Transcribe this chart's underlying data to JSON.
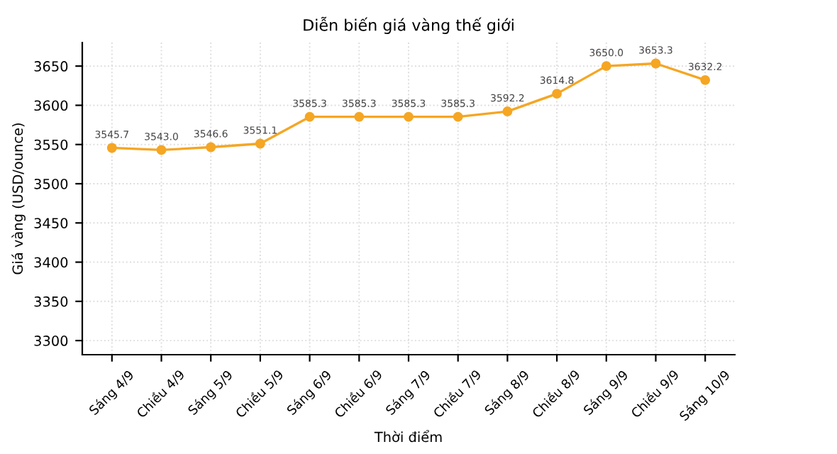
{
  "chart_data": {
    "type": "line",
    "title": "Diễn biến giá vàng thế giới",
    "xlabel": "Thời điểm",
    "ylabel": "Giá vàng (USD/ounce)",
    "categories": [
      "Sáng 4/9",
      "Chiều 4/9",
      "Sáng 5/9",
      "Chiều 5/9",
      "Sáng 6/9",
      "Chiều 6/9",
      "Sáng 7/9",
      "Chiều 7/9",
      "Sáng 8/9",
      "Chiều 8/9",
      "Sáng 9/9",
      "Chiều 9/9",
      "Sáng 10/9"
    ],
    "series": [
      {
        "color": "#f5a623",
        "values": [
          3545.7,
          3543.0,
          3546.6,
          3551.1,
          3585.3,
          3585.3,
          3585.3,
          3585.3,
          3592.2,
          3614.8,
          3650.0,
          3653.3,
          3632.2
        ],
        "value_labels": [
          "3545.7",
          "3543.0",
          "3546.6",
          "3551.1",
          "3585.3",
          "3585.3",
          "3585.3",
          "3585.3",
          "3592.2",
          "3614.8",
          "3650.0",
          "3653.3",
          "3632.2"
        ]
      }
    ],
    "ylim": [
      3282,
      3680
    ],
    "yticks": [
      3300,
      3350,
      3400,
      3450,
      3500,
      3550,
      3600,
      3650
    ],
    "grid": true,
    "marker": "circle",
    "line_style": "solid",
    "legend": false
  }
}
